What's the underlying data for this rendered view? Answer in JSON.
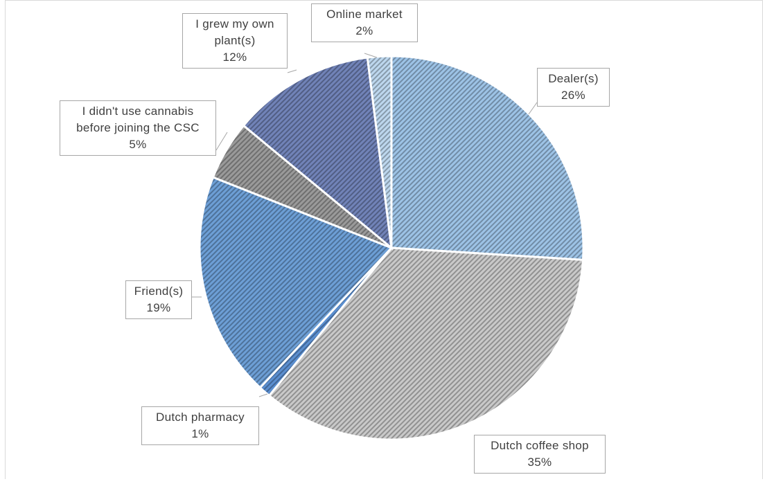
{
  "chart_data": {
    "type": "pie",
    "title": "",
    "slices": [
      {
        "label": "Dealer(s)",
        "value": 26,
        "value_label": "26%",
        "color": "#9dc3e6"
      },
      {
        "label": "Dutch coffee shop",
        "value": 35,
        "value_label": "35%",
        "color": "#c9c9c9"
      },
      {
        "label": "Dutch pharmacy",
        "value": 1,
        "value_label": "1%",
        "color": "#5b8fd0"
      },
      {
        "label": "Friend(s)",
        "value": 19,
        "value_label": "19%",
        "color": "#6d9fd6"
      },
      {
        "label": "I didn't use cannabis before joining the CSC",
        "value": 5,
        "value_label": "5%",
        "color": "#9a9a9a"
      },
      {
        "label": "I grew my own plant(s)",
        "value": 12,
        "value_label": "12%",
        "color": "#7183b8"
      },
      {
        "label": "Online market",
        "value": 2,
        "value_label": "2%",
        "color": "#bdd7ee"
      }
    ],
    "labels": {
      "dealers": {
        "line1": "Dealer(s)",
        "line2": "26%"
      },
      "coffee": {
        "line1": "Dutch coffee shop",
        "line2": "35%"
      },
      "pharmacy": {
        "line1": "Dutch pharmacy",
        "line2": "1%"
      },
      "friends": {
        "line1": "Friend(s)",
        "line2": "19%"
      },
      "nouse": {
        "line1": "I didn't use cannabis",
        "line2": "before joining the CSC",
        "line3": "5%"
      },
      "grew": {
        "line1": "I grew my own",
        "line2": "plant(s)",
        "line3": "12%"
      },
      "online": {
        "line1": "Online market",
        "line2": "2%"
      }
    },
    "start_angle_deg": 0,
    "direction": "clockwise",
    "legend": "none"
  }
}
